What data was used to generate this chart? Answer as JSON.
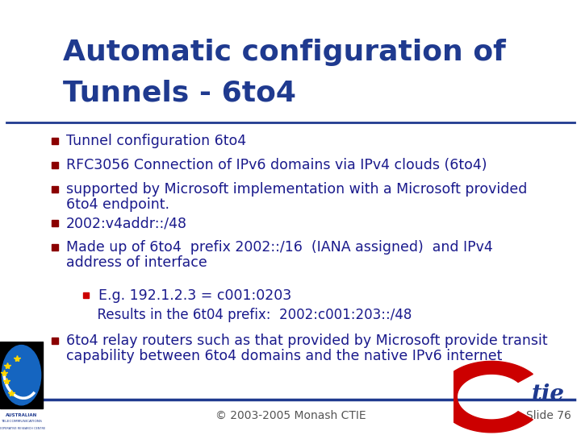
{
  "title_line1": "Automatic configuration of",
  "title_line2": "Tunnels - 6to4",
  "title_color": "#1F3A8F",
  "background_color": "#FFFFFF",
  "bullet_color": "#1A1A8C",
  "bullet_square_color": "#8B0000",
  "sub_bullet_square_color": "#CC0000",
  "separator_color": "#1F3A8F",
  "footer_text": "© 2003-2005 Monash CTIE",
  "footer_color": "#555555",
  "slide_number": "Slide 76",
  "bullets": [
    "Tunnel configuration 6to4",
    "RFC3056 Connection of IPv6 domains via IPv4 clouds (6to4)",
    "supported by Microsoft implementation with a Microsoft provided\n6to4 endpoint.",
    "2002:v4addr::/48",
    "Made up of 6to4  prefix 2002::/16  (IANA assigned)  and IPv4\naddress of interface"
  ],
  "sub_bullet": "E.g. 192.1.2.3 = c001:0203",
  "sub_text": "  Results in the 6t04 prefix:  2002:c001:203::/48",
  "last_bullet": "6to4 relay routers such as that provided by Microsoft provide transit\ncapability between 6to4 domains and the native IPv6 internet",
  "title_fontsize": 26,
  "bullet_fontsize": 12.5,
  "footer_fontsize": 10,
  "slide_num_fontsize": 10,
  "ctie_color": "#1F3A8F",
  "ctie_red": "#CC0000"
}
